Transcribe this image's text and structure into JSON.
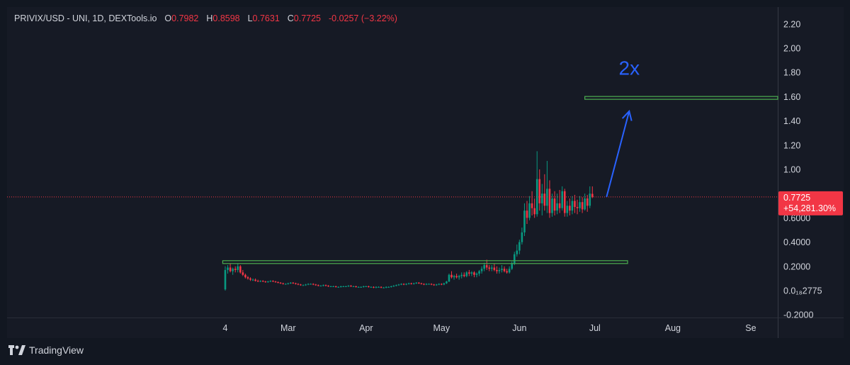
{
  "legend": {
    "symbol": "PRIVIX/USD - UNI, 1D, DEXTools.io",
    "open_label": "O",
    "open_value": "0.7982",
    "high_label": "H",
    "high_value": "0.8598",
    "low_label": "L",
    "low_value": "0.7631",
    "close_label": "C",
    "close_value": "0.7725",
    "change": "-0.0257 (−3.22%)"
  },
  "price_axis": {
    "ticks": [
      {
        "value": 2.2,
        "label": "2.20"
      },
      {
        "value": 2.0,
        "label": "2.00"
      },
      {
        "value": 1.8,
        "label": "1.80"
      },
      {
        "value": 1.6,
        "label": "1.60"
      },
      {
        "value": 1.4,
        "label": "1.40"
      },
      {
        "value": 1.2,
        "label": "1.20"
      },
      {
        "value": 1.0,
        "label": "1.00"
      },
      {
        "value": 0.6,
        "label": "0.6000"
      },
      {
        "value": 0.4,
        "label": "0.4000"
      },
      {
        "value": 0.2,
        "label": "0.2000"
      },
      {
        "value": 0.0,
        "label": "0.0₁₈2775"
      },
      {
        "value": -0.2,
        "label": "-0.2000"
      }
    ],
    "current_price": "0.7725",
    "current_change": "+54,281.30%",
    "current_color": "#f23645"
  },
  "time_axis": {
    "ticks": [
      {
        "day": 0,
        "label": "4"
      },
      {
        "day": 25,
        "label": "Mar"
      },
      {
        "day": 56,
        "label": "Apr"
      },
      {
        "day": 86,
        "label": "May"
      },
      {
        "day": 117,
        "label": "Jun"
      },
      {
        "day": 147,
        "label": "Jul"
      },
      {
        "day": 178,
        "label": "Aug"
      },
      {
        "day": 209,
        "label": "Se"
      }
    ]
  },
  "annotation": {
    "target_label": "2x",
    "target_level": 1.59,
    "support_level": 0.235,
    "line_color": "#4caf50",
    "arrow_color": "#2962ff"
  },
  "chart_data": {
    "type": "candlestick",
    "title": "PRIVIX/USD - UNI, 1D, DEXTools.io",
    "ylim": [
      -0.25,
      2.28
    ],
    "x_start": "Feb 4",
    "up_color": "#089981",
    "down_color": "#f23645",
    "ohlc": [
      [
        0.01,
        0.2,
        0.0,
        0.17
      ],
      [
        0.17,
        0.21,
        0.14,
        0.19
      ],
      [
        0.19,
        0.22,
        0.15,
        0.16
      ],
      [
        0.16,
        0.19,
        0.13,
        0.18
      ],
      [
        0.18,
        0.2,
        0.15,
        0.17
      ],
      [
        0.17,
        0.22,
        0.15,
        0.2
      ],
      [
        0.2,
        0.21,
        0.14,
        0.15
      ],
      [
        0.15,
        0.17,
        0.12,
        0.13
      ],
      [
        0.13,
        0.14,
        0.1,
        0.11
      ],
      [
        0.11,
        0.12,
        0.09,
        0.1
      ],
      [
        0.1,
        0.11,
        0.08,
        0.09
      ],
      [
        0.09,
        0.1,
        0.08,
        0.09
      ],
      [
        0.09,
        0.1,
        0.075,
        0.08
      ],
      [
        0.08,
        0.09,
        0.07,
        0.075
      ],
      [
        0.075,
        0.085,
        0.07,
        0.08
      ],
      [
        0.08,
        0.085,
        0.07,
        0.075
      ],
      [
        0.075,
        0.08,
        0.065,
        0.07
      ],
      [
        0.07,
        0.08,
        0.065,
        0.075
      ],
      [
        0.075,
        0.085,
        0.07,
        0.08
      ],
      [
        0.08,
        0.085,
        0.07,
        0.075
      ],
      [
        0.075,
        0.08,
        0.065,
        0.07
      ],
      [
        0.07,
        0.075,
        0.06,
        0.065
      ],
      [
        0.065,
        0.07,
        0.055,
        0.06
      ],
      [
        0.06,
        0.065,
        0.05,
        0.055
      ],
      [
        0.055,
        0.06,
        0.05,
        0.055
      ],
      [
        0.055,
        0.065,
        0.05,
        0.06
      ],
      [
        0.06,
        0.07,
        0.055,
        0.065
      ],
      [
        0.065,
        0.07,
        0.055,
        0.06
      ],
      [
        0.06,
        0.065,
        0.05,
        0.055
      ],
      [
        0.055,
        0.06,
        0.045,
        0.05
      ],
      [
        0.05,
        0.055,
        0.04,
        0.045
      ],
      [
        0.045,
        0.05,
        0.04,
        0.045
      ],
      [
        0.045,
        0.055,
        0.04,
        0.05
      ],
      [
        0.05,
        0.06,
        0.045,
        0.055
      ],
      [
        0.055,
        0.06,
        0.05,
        0.055
      ],
      [
        0.055,
        0.06,
        0.045,
        0.05
      ],
      [
        0.05,
        0.055,
        0.04,
        0.045
      ],
      [
        0.045,
        0.05,
        0.035,
        0.04
      ],
      [
        0.04,
        0.045,
        0.035,
        0.04
      ],
      [
        0.04,
        0.05,
        0.035,
        0.045
      ],
      [
        0.045,
        0.05,
        0.035,
        0.04
      ],
      [
        0.04,
        0.045,
        0.03,
        0.035
      ],
      [
        0.035,
        0.04,
        0.03,
        0.035
      ],
      [
        0.035,
        0.04,
        0.03,
        0.035
      ],
      [
        0.035,
        0.04,
        0.025,
        0.03
      ],
      [
        0.03,
        0.035,
        0.025,
        0.03
      ],
      [
        0.03,
        0.04,
        0.025,
        0.035
      ],
      [
        0.035,
        0.04,
        0.03,
        0.035
      ],
      [
        0.035,
        0.04,
        0.03,
        0.035
      ],
      [
        0.035,
        0.045,
        0.03,
        0.04
      ],
      [
        0.04,
        0.045,
        0.03,
        0.035
      ],
      [
        0.035,
        0.04,
        0.03,
        0.035
      ],
      [
        0.035,
        0.04,
        0.025,
        0.03
      ],
      [
        0.03,
        0.035,
        0.025,
        0.03
      ],
      [
        0.03,
        0.035,
        0.025,
        0.03
      ],
      [
        0.03,
        0.04,
        0.025,
        0.035
      ],
      [
        0.035,
        0.04,
        0.03,
        0.035
      ],
      [
        0.035,
        0.04,
        0.025,
        0.03
      ],
      [
        0.03,
        0.035,
        0.025,
        0.03
      ],
      [
        0.03,
        0.035,
        0.02,
        0.025
      ],
      [
        0.025,
        0.035,
        0.02,
        0.03
      ],
      [
        0.03,
        0.035,
        0.025,
        0.03
      ],
      [
        0.03,
        0.035,
        0.02,
        0.025
      ],
      [
        0.025,
        0.03,
        0.02,
        0.025
      ],
      [
        0.025,
        0.035,
        0.02,
        0.03
      ],
      [
        0.03,
        0.035,
        0.025,
        0.03
      ],
      [
        0.03,
        0.04,
        0.025,
        0.035
      ],
      [
        0.035,
        0.045,
        0.03,
        0.04
      ],
      [
        0.04,
        0.05,
        0.035,
        0.045
      ],
      [
        0.045,
        0.055,
        0.04,
        0.05
      ],
      [
        0.05,
        0.06,
        0.045,
        0.055
      ],
      [
        0.055,
        0.06,
        0.045,
        0.05
      ],
      [
        0.05,
        0.06,
        0.045,
        0.055
      ],
      [
        0.055,
        0.065,
        0.05,
        0.06
      ],
      [
        0.06,
        0.065,
        0.05,
        0.055
      ],
      [
        0.055,
        0.065,
        0.05,
        0.06
      ],
      [
        0.06,
        0.07,
        0.055,
        0.065
      ],
      [
        0.065,
        0.07,
        0.055,
        0.06
      ],
      [
        0.06,
        0.065,
        0.05,
        0.055
      ],
      [
        0.055,
        0.06,
        0.045,
        0.05
      ],
      [
        0.05,
        0.06,
        0.045,
        0.055
      ],
      [
        0.055,
        0.06,
        0.05,
        0.055
      ],
      [
        0.055,
        0.06,
        0.045,
        0.05
      ],
      [
        0.05,
        0.055,
        0.04,
        0.045
      ],
      [
        0.045,
        0.055,
        0.04,
        0.05
      ],
      [
        0.05,
        0.06,
        0.045,
        0.055
      ],
      [
        0.055,
        0.06,
        0.045,
        0.05
      ],
      [
        0.05,
        0.065,
        0.045,
        0.06
      ],
      [
        0.06,
        0.08,
        0.055,
        0.075
      ],
      [
        0.075,
        0.14,
        0.07,
        0.13
      ],
      [
        0.13,
        0.16,
        0.1,
        0.11
      ],
      [
        0.11,
        0.13,
        0.09,
        0.12
      ],
      [
        0.12,
        0.14,
        0.1,
        0.11
      ],
      [
        0.11,
        0.13,
        0.09,
        0.12
      ],
      [
        0.12,
        0.15,
        0.1,
        0.13
      ],
      [
        0.13,
        0.15,
        0.11,
        0.12
      ],
      [
        0.12,
        0.16,
        0.11,
        0.15
      ],
      [
        0.15,
        0.17,
        0.12,
        0.14
      ],
      [
        0.14,
        0.16,
        0.12,
        0.15
      ],
      [
        0.15,
        0.16,
        0.11,
        0.13
      ],
      [
        0.13,
        0.15,
        0.11,
        0.14
      ],
      [
        0.14,
        0.17,
        0.12,
        0.16
      ],
      [
        0.16,
        0.2,
        0.14,
        0.18
      ],
      [
        0.18,
        0.23,
        0.16,
        0.21
      ],
      [
        0.21,
        0.255,
        0.17,
        0.19
      ],
      [
        0.19,
        0.21,
        0.16,
        0.18
      ],
      [
        0.18,
        0.21,
        0.16,
        0.19
      ],
      [
        0.19,
        0.22,
        0.16,
        0.17
      ],
      [
        0.17,
        0.2,
        0.14,
        0.16
      ],
      [
        0.16,
        0.19,
        0.14,
        0.17
      ],
      [
        0.17,
        0.21,
        0.15,
        0.18
      ],
      [
        0.18,
        0.2,
        0.15,
        0.16
      ],
      [
        0.16,
        0.18,
        0.14,
        0.15
      ],
      [
        0.15,
        0.2,
        0.14,
        0.18
      ],
      [
        0.18,
        0.24,
        0.17,
        0.22
      ],
      [
        0.22,
        0.32,
        0.21,
        0.3
      ],
      [
        0.3,
        0.38,
        0.28,
        0.33
      ],
      [
        0.33,
        0.42,
        0.3,
        0.4
      ],
      [
        0.4,
        0.52,
        0.38,
        0.48
      ],
      [
        0.48,
        0.72,
        0.45,
        0.66
      ],
      [
        0.66,
        0.74,
        0.55,
        0.6
      ],
      [
        0.6,
        0.78,
        0.58,
        0.72
      ],
      [
        0.72,
        0.82,
        0.62,
        0.68
      ],
      [
        0.68,
        0.76,
        0.6,
        0.63
      ],
      [
        0.63,
        1.15,
        0.61,
        0.92
      ],
      [
        0.92,
        1.0,
        0.66,
        0.72
      ],
      [
        0.72,
        0.88,
        0.62,
        0.8
      ],
      [
        0.8,
        0.96,
        0.66,
        0.7
      ],
      [
        0.7,
        1.07,
        0.64,
        0.84
      ],
      [
        0.84,
        0.91,
        0.6,
        0.64
      ],
      [
        0.64,
        0.8,
        0.61,
        0.76
      ],
      [
        0.76,
        0.82,
        0.62,
        0.66
      ],
      [
        0.66,
        0.8,
        0.63,
        0.72
      ],
      [
        0.72,
        0.83,
        0.64,
        0.68
      ],
      [
        0.68,
        0.86,
        0.66,
        0.82
      ],
      [
        0.82,
        0.84,
        0.61,
        0.64
      ],
      [
        0.64,
        0.74,
        0.61,
        0.7
      ],
      [
        0.7,
        0.76,
        0.62,
        0.66
      ],
      [
        0.66,
        0.78,
        0.63,
        0.74
      ],
      [
        0.74,
        0.79,
        0.64,
        0.69
      ],
      [
        0.69,
        0.75,
        0.63,
        0.68
      ],
      [
        0.68,
        0.78,
        0.65,
        0.73
      ],
      [
        0.73,
        0.77,
        0.64,
        0.67
      ],
      [
        0.67,
        0.8,
        0.66,
        0.76
      ],
      [
        0.76,
        0.79,
        0.65,
        0.7
      ],
      [
        0.7,
        0.86,
        0.68,
        0.8
      ],
      [
        0.7982,
        0.8598,
        0.7631,
        0.7725
      ]
    ]
  }
}
